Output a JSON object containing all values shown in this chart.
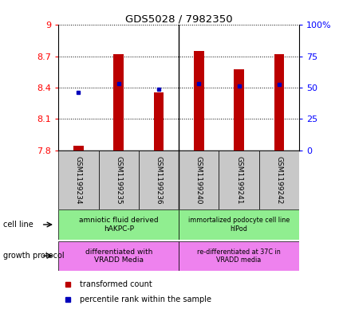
{
  "title": "GDS5028 / 7982350",
  "samples": [
    "GSM1199234",
    "GSM1199235",
    "GSM1199236",
    "GSM1199240",
    "GSM1199241",
    "GSM1199242"
  ],
  "bar_values": [
    7.84,
    8.72,
    8.355,
    8.755,
    8.575,
    8.72
  ],
  "bar_bottom": 7.8,
  "percentile_values": [
    8.355,
    8.435,
    8.385,
    8.435,
    8.415,
    8.43
  ],
  "ylim": [
    7.8,
    9.0
  ],
  "yticks": [
    7.8,
    8.1,
    8.4,
    8.7,
    9.0
  ],
  "ytick_labels": [
    "7.8",
    "8.1",
    "8.4",
    "8.7",
    "9"
  ],
  "right_ytick_pcts": [
    0,
    25,
    50,
    75,
    100
  ],
  "right_ytick_labels": [
    "0",
    "25",
    "50",
    "75",
    "100%"
  ],
  "bar_color": "#bb0000",
  "percentile_color": "#0000bb",
  "cell_line_group1": "amniotic fluid derived\nhAKPC-P",
  "cell_line_group2": "immortalized podocyte cell line\nhIPod",
  "growth_group1": "differentiated with\nVRADD Media",
  "growth_group2": "re-differentiated at 37C in\nVRADD media",
  "cell_line_color": "#90ee90",
  "growth_color": "#ee82ee",
  "sample_box_color": "#c8c8c8",
  "legend_red_label": "transformed count",
  "legend_blue_label": "percentile rank within the sample",
  "bar_width": 0.25
}
